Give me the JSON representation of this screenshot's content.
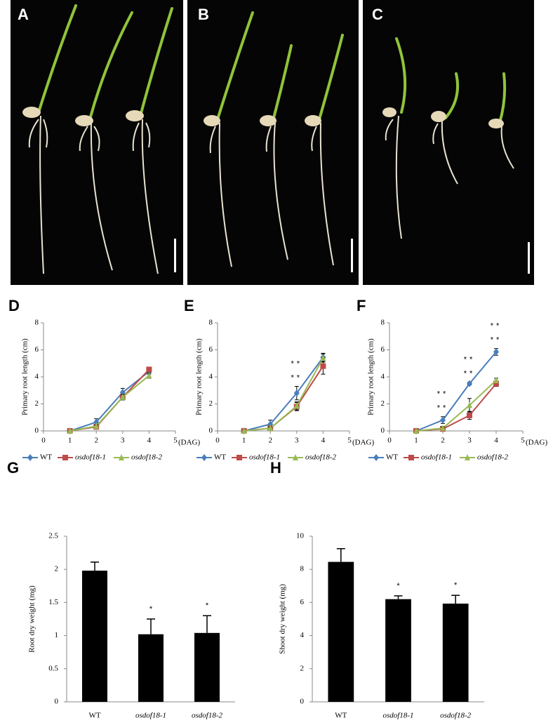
{
  "photo_panels": [
    {
      "label": "A"
    },
    {
      "label": "B"
    },
    {
      "label": "C"
    }
  ],
  "chart_data": [
    {
      "panel_label": "D",
      "type": "line",
      "ylabel": "Primary root length (cm)",
      "x_unit": "(DAG)",
      "x": [
        1,
        2,
        3,
        4
      ],
      "xlim": [
        0,
        5
      ],
      "xticks": [
        0,
        1,
        2,
        3,
        4,
        5
      ],
      "ylim": [
        0,
        8
      ],
      "yticks": [
        0,
        2,
        4,
        6,
        8
      ],
      "series": [
        {
          "name": "WT",
          "color": "#4a7ebb",
          "marker": "diamond",
          "values": [
            0,
            0.65,
            2.85,
            4.4
          ],
          "errors": [
            0,
            0.25,
            0.3,
            0.2
          ]
        },
        {
          "name": "osdof18-1",
          "color": "#be4b48",
          "marker": "square",
          "values": [
            0,
            0.3,
            2.5,
            4.55
          ],
          "errors": [
            0,
            0.1,
            0.2,
            0.15
          ]
        },
        {
          "name": "osdof18-2",
          "color": "#98b954",
          "marker": "triangle",
          "values": [
            0,
            0.35,
            2.5,
            4.1
          ],
          "errors": [
            0,
            0.1,
            0.2,
            0.2
          ]
        }
      ],
      "annotations": []
    },
    {
      "panel_label": "E",
      "type": "line",
      "ylabel": "Primary root length (cm)",
      "x_unit": "(DAG)",
      "x": [
        1,
        2,
        3,
        4
      ],
      "xlim": [
        0,
        5
      ],
      "xticks": [
        0,
        1,
        2,
        3,
        4,
        5
      ],
      "ylim": [
        0,
        8
      ],
      "yticks": [
        0,
        2,
        4,
        6,
        8
      ],
      "series": [
        {
          "name": "WT",
          "color": "#4a7ebb",
          "marker": "diamond",
          "values": [
            0,
            0.5,
            2.8,
            5.45
          ],
          "errors": [
            0,
            0.3,
            0.5,
            0.3
          ]
        },
        {
          "name": "osdof18-1",
          "color": "#be4b48",
          "marker": "square",
          "values": [
            0,
            0.2,
            1.8,
            4.8
          ],
          "errors": [
            0,
            0.1,
            0.3,
            0.6
          ]
        },
        {
          "name": "osdof18-2",
          "color": "#98b954",
          "marker": "triangle",
          "values": [
            0,
            0.2,
            1.85,
            5.4
          ],
          "errors": [
            0,
            0.1,
            0.3,
            0.3
          ]
        }
      ],
      "annotations": [
        {
          "x": 3,
          "lines": [
            "**",
            "**"
          ]
        }
      ]
    },
    {
      "panel_label": "F",
      "type": "line",
      "ylabel": "Primary root length (cm)",
      "x_unit": "(DAG)",
      "x": [
        1,
        2,
        3,
        4
      ],
      "xlim": [
        0,
        5
      ],
      "xticks": [
        0,
        1,
        2,
        3,
        4,
        5
      ],
      "ylim": [
        0,
        8
      ],
      "yticks": [
        0,
        2,
        4,
        6,
        8
      ],
      "series": [
        {
          "name": "WT",
          "color": "#4a7ebb",
          "marker": "diamond",
          "values": [
            0,
            0.8,
            3.5,
            5.85
          ],
          "errors": [
            0,
            0.25,
            0.1,
            0.25
          ]
        },
        {
          "name": "osdof18-1",
          "color": "#be4b48",
          "marker": "square",
          "values": [
            0,
            0.15,
            1.15,
            3.5
          ],
          "errors": [
            0,
            0.1,
            0.3,
            0.2
          ]
        },
        {
          "name": "osdof18-2",
          "color": "#98b954",
          "marker": "triangle",
          "values": [
            0,
            0.2,
            1.9,
            3.75
          ],
          "errors": [
            0,
            0.1,
            0.5,
            0.15
          ]
        }
      ],
      "annotations": [
        {
          "x": 2,
          "lines": [
            "**",
            "**"
          ]
        },
        {
          "x": 3,
          "lines": [
            "**",
            "**"
          ]
        },
        {
          "x": 4,
          "lines": [
            "**",
            "**"
          ]
        }
      ]
    },
    {
      "panel_label": "G",
      "type": "bar",
      "ylabel": "Root dry weight  (mg)",
      "categories": [
        "WT",
        "osdof18-1",
        "osdof18-2"
      ],
      "values": [
        1.98,
        1.02,
        1.04
      ],
      "errors": [
        0.13,
        0.23,
        0.26
      ],
      "color": "#000000",
      "ylim": [
        0,
        2.5
      ],
      "yticks": [
        0,
        0.5,
        1,
        1.5,
        2,
        2.5
      ],
      "significance": [
        null,
        "*",
        "*"
      ]
    },
    {
      "panel_label": "H",
      "type": "bar",
      "ylabel": "Shoot dry weight (mg)",
      "categories": [
        "WT",
        "osdof18-1",
        "osdof18-2"
      ],
      "values": [
        8.45,
        6.2,
        5.93
      ],
      "errors": [
        0.8,
        0.2,
        0.5
      ],
      "color": "#000000",
      "ylim": [
        0,
        10
      ],
      "yticks": [
        0,
        2,
        4,
        6,
        8,
        10
      ],
      "significance": [
        null,
        "*",
        "*"
      ]
    }
  ]
}
